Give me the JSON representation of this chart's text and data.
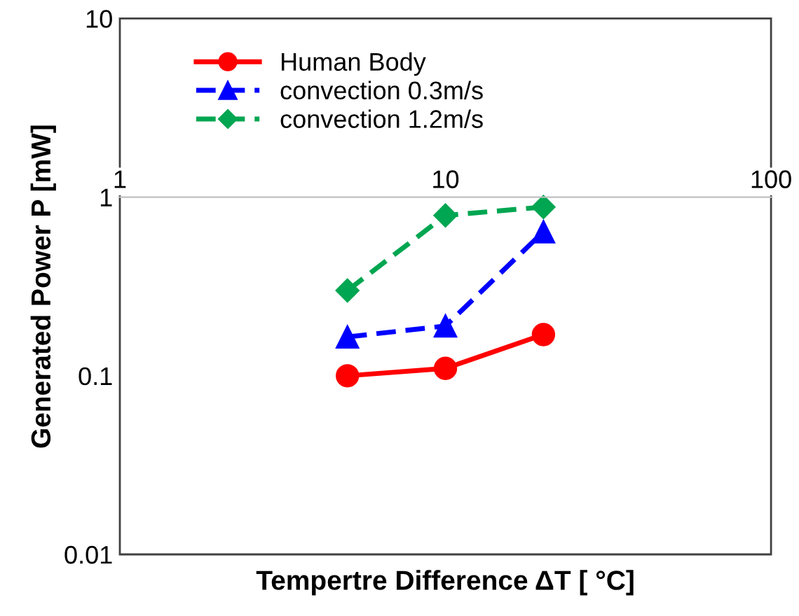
{
  "chart_data": {
    "type": "line",
    "xlabel": "Tempertre Difference ΔT [ °C]",
    "ylabel": "Generated Power P [mW]",
    "log": "xy",
    "xlim": [
      1,
      100
    ],
    "xticks": [
      1,
      10,
      100
    ],
    "ylim": [
      0.01,
      10
    ],
    "yticks": [
      0.01,
      0.1,
      1,
      10
    ],
    "grid": false,
    "legend": "top left",
    "x": [
      5,
      10,
      20
    ],
    "series": [
      {
        "name": "Human Body",
        "color": "#ff0000",
        "values": [
          0.1,
          0.11,
          0.17
        ],
        "marker": "circle",
        "line_style": "solid"
      },
      {
        "name": "convection 0.3m/s",
        "color": "#0000ff",
        "values": [
          0.165,
          0.19,
          0.64
        ],
        "marker": "triangle",
        "line_style": "dashed"
      },
      {
        "name": "convection 1.2m/s",
        "color": "#00a651",
        "values": [
          0.3,
          0.79,
          0.88
        ],
        "marker": "diamond",
        "line_style": "dashed"
      }
    ]
  }
}
